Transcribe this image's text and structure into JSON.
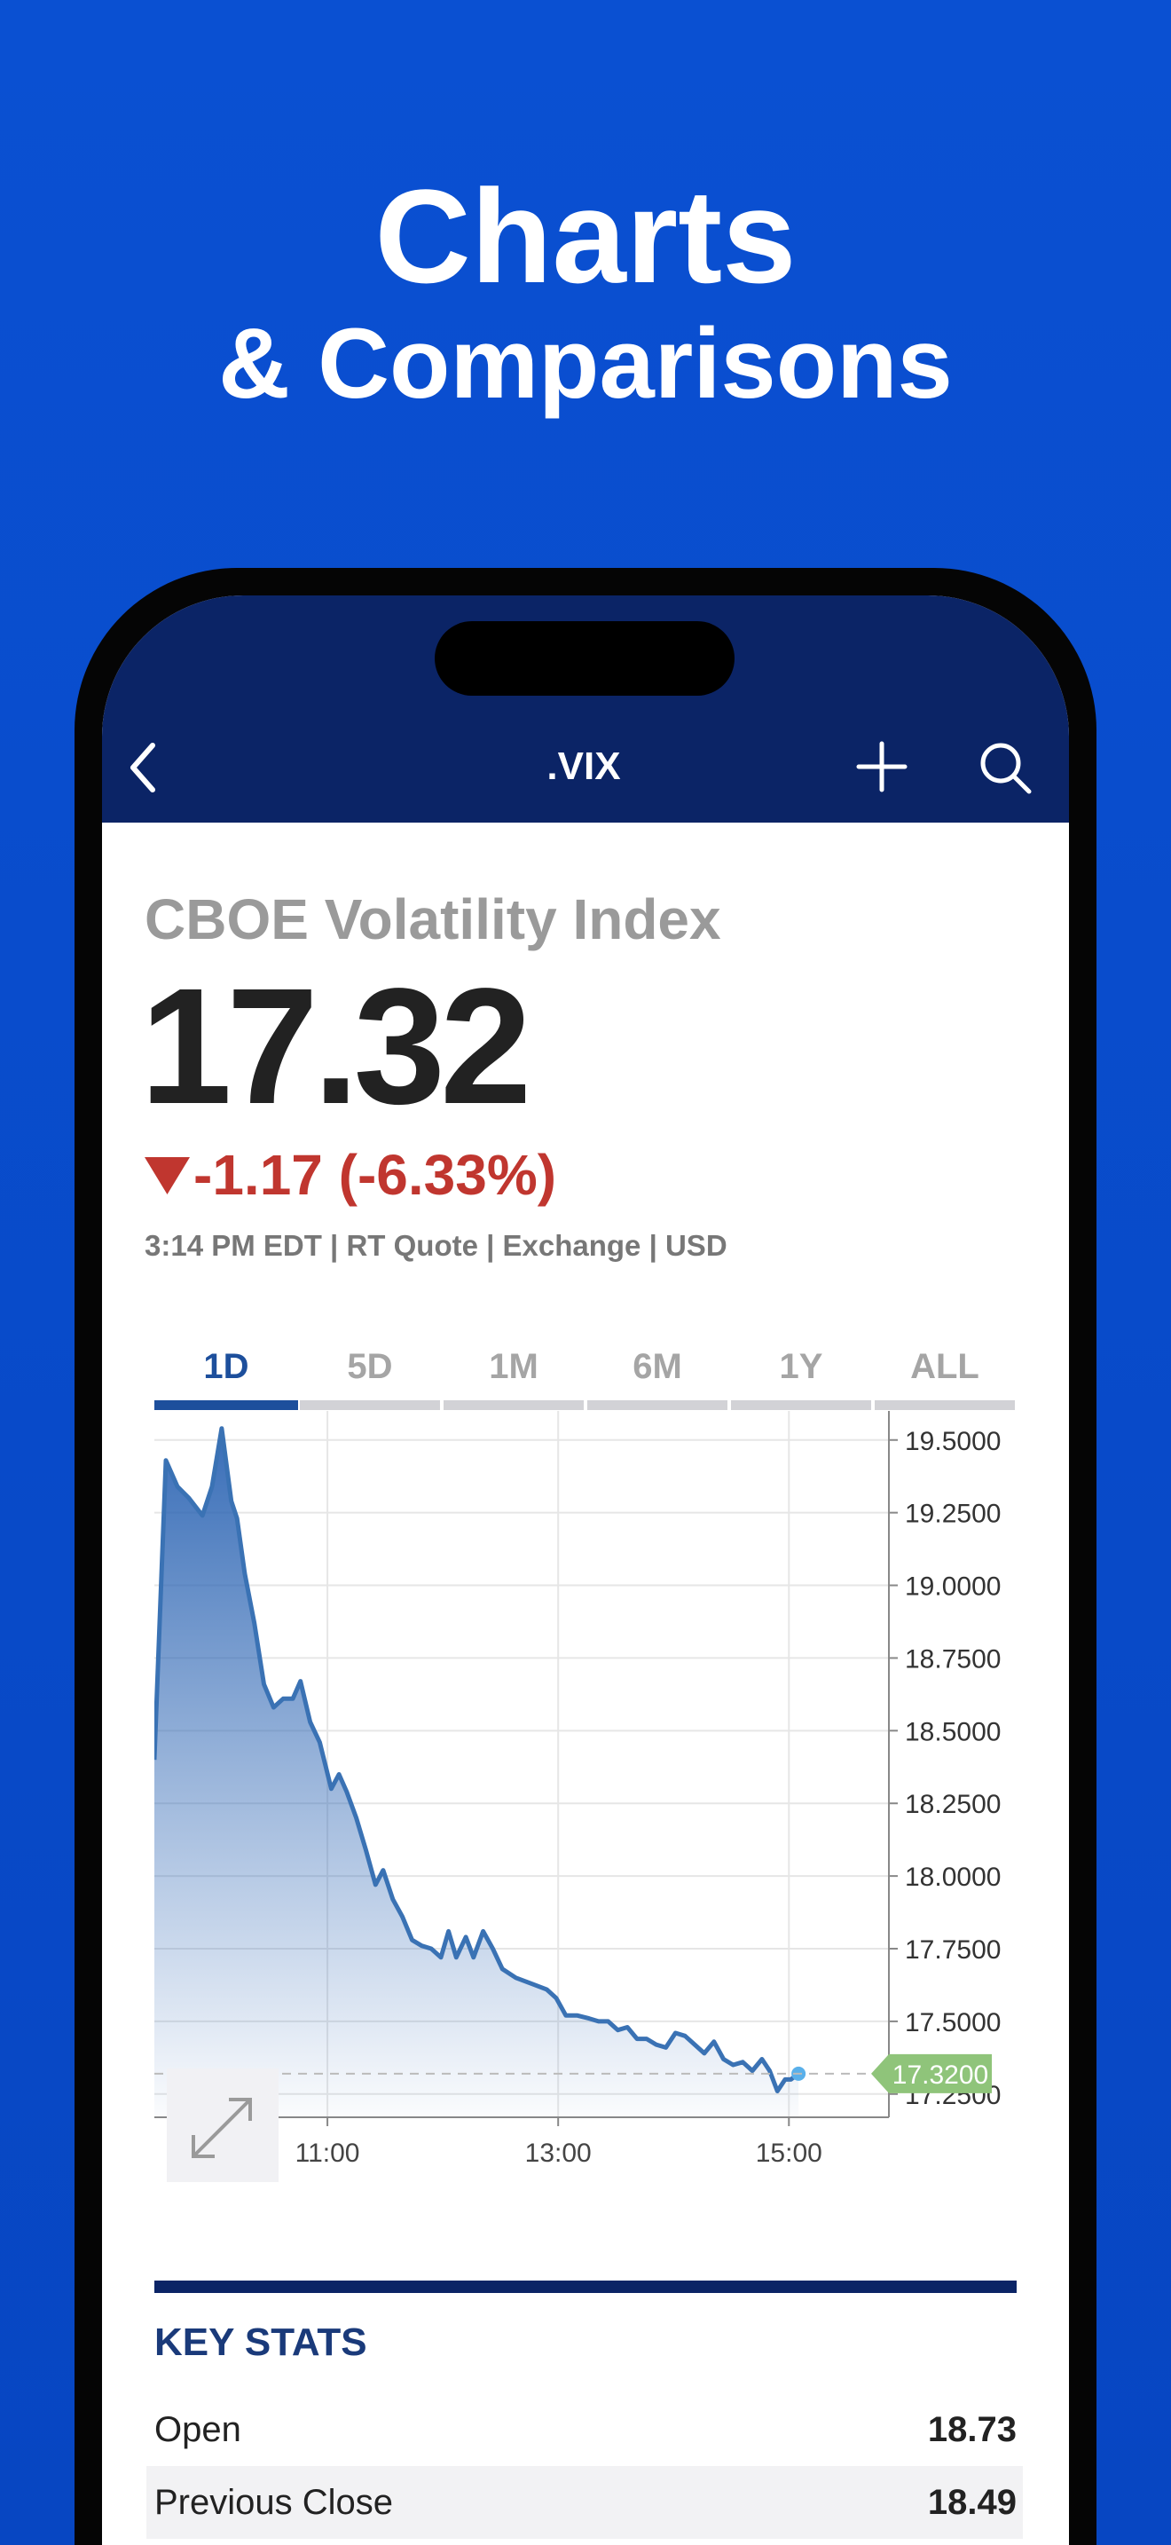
{
  "header": {
    "title": "Charts",
    "subtitle": "& Comparisons"
  },
  "nav": {
    "title": ".VIX"
  },
  "quote": {
    "name": "CBOE Volatility Index",
    "price": 17.32,
    "change": "-1.17 (-6.33%)",
    "meta": "3:14 PM EDT | RT Quote | Exchange | USD"
  },
  "tabs": {
    "items": [
      "1D",
      "5D",
      "1M",
      "6M",
      "1Y",
      "ALL"
    ],
    "active": 0
  },
  "chart_data": {
    "type": "area",
    "color": "#3a72b4",
    "x": [
      "9:30",
      "9:36",
      "9:42",
      "9:48",
      "9:55",
      "10:00",
      "10:05",
      "10:10",
      "10:13",
      "10:17",
      "10:22",
      "10:27",
      "10:32",
      "10:37",
      "10:42",
      "10:46",
      "10:51",
      "10:56",
      "11:02",
      "11:06",
      "11:10",
      "11:15",
      "11:20",
      "11:25",
      "11:29",
      "11:34",
      "11:39",
      "11:44",
      "11:49",
      "11:54",
      "11:59",
      "12:03",
      "12:07",
      "12:12",
      "12:16",
      "12:21",
      "12:26",
      "12:31",
      "12:38",
      "12:46",
      "12:54",
      "12:59",
      "13:04",
      "13:10",
      "13:16",
      "13:21",
      "13:26",
      "13:31",
      "13:36",
      "13:41",
      "13:46",
      "13:51",
      "13:56",
      "14:01",
      "14:06",
      "14:11",
      "14:16",
      "14:21",
      "14:26",
      "14:31",
      "14:36",
      "14:41",
      "14:46",
      "14:50",
      "14:54",
      "14:58",
      "15:01",
      "15:05"
    ],
    "values": [
      18.4,
      19.43,
      19.34,
      19.3,
      19.24,
      19.34,
      19.54,
      19.29,
      19.23,
      19.04,
      18.87,
      18.66,
      18.58,
      18.61,
      18.61,
      18.67,
      18.53,
      18.46,
      18.3,
      18.35,
      18.29,
      18.2,
      18.09,
      17.97,
      18.02,
      17.92,
      17.86,
      17.78,
      17.76,
      17.75,
      17.72,
      17.81,
      17.72,
      17.79,
      17.72,
      17.81,
      17.75,
      17.68,
      17.65,
      17.63,
      17.61,
      17.58,
      17.52,
      17.52,
      17.51,
      17.5,
      17.5,
      17.47,
      17.48,
      17.44,
      17.44,
      17.42,
      17.41,
      17.46,
      17.45,
      17.42,
      17.39,
      17.43,
      17.37,
      17.35,
      17.36,
      17.33,
      17.37,
      17.33,
      17.26,
      17.3,
      17.3,
      17.32
    ],
    "xlim": [
      "9:30",
      "15:52"
    ],
    "xticks": [
      "11:00",
      "13:00",
      "15:00"
    ],
    "ylim": [
      17.17,
      19.6
    ],
    "yticks": [
      {
        "value": 17.25,
        "label": "17.2500"
      },
      {
        "value": 17.5,
        "label": "17.5000"
      },
      {
        "value": 17.75,
        "label": "17.7500"
      },
      {
        "value": 18,
        "label": "18.0000"
      },
      {
        "value": 18.25,
        "label": "18.2500"
      },
      {
        "value": 18.5,
        "label": "18.5000"
      },
      {
        "value": 18.75,
        "label": "18.7500"
      },
      {
        "value": 19,
        "label": "19.0000"
      },
      {
        "value": 19.25,
        "label": "19.2500"
      },
      {
        "value": 19.5,
        "label": "19.5000"
      }
    ],
    "grid": true,
    "last_price": {
      "value": 17.32,
      "label": "17.3200"
    }
  },
  "key_stats": {
    "title": "KEY STATS",
    "rows": [
      [
        "Open",
        18.73
      ],
      [
        "Previous Close",
        18.49
      ]
    ]
  }
}
